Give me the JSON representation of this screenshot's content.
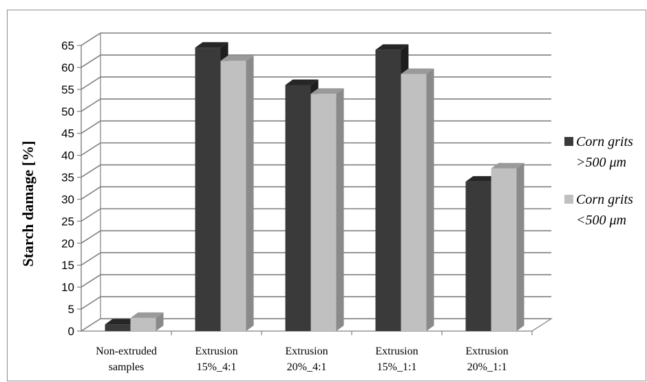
{
  "chart_data": {
    "type": "bar",
    "title": "",
    "xlabel": "",
    "ylabel": "Starch damage [%]",
    "ylim": [
      0,
      65
    ],
    "ytick_step": 5,
    "yticks": [
      "0",
      "5",
      "10",
      "15",
      "20",
      "25",
      "30",
      "35",
      "40",
      "45",
      "50",
      "55",
      "60",
      "65"
    ],
    "grid": true,
    "legend_position": "right",
    "categories": [
      [
        "Non-extruded",
        "samples"
      ],
      [
        "Extrusion",
        "15%_4:1"
      ],
      [
        "Extrusion",
        "20%_4:1"
      ],
      [
        "Extrusion",
        "15%_1:1"
      ],
      [
        "Extrusion",
        "20%_1:1"
      ]
    ],
    "series": [
      {
        "name": [
          "Corn grits",
          ">500 μm"
        ],
        "color": "#3a3a3a",
        "side_color": "#1e1e1e",
        "top_color": "#262626",
        "values": [
          1.5,
          64.5,
          56,
          64,
          34
        ]
      },
      {
        "name": [
          "Corn grits",
          "<500 μm"
        ],
        "color": "#c0c0c0",
        "side_color": "#8a8a8a",
        "top_color": "#9a9a9a",
        "values": [
          3,
          61.5,
          54,
          58.5,
          37
        ]
      }
    ]
  }
}
